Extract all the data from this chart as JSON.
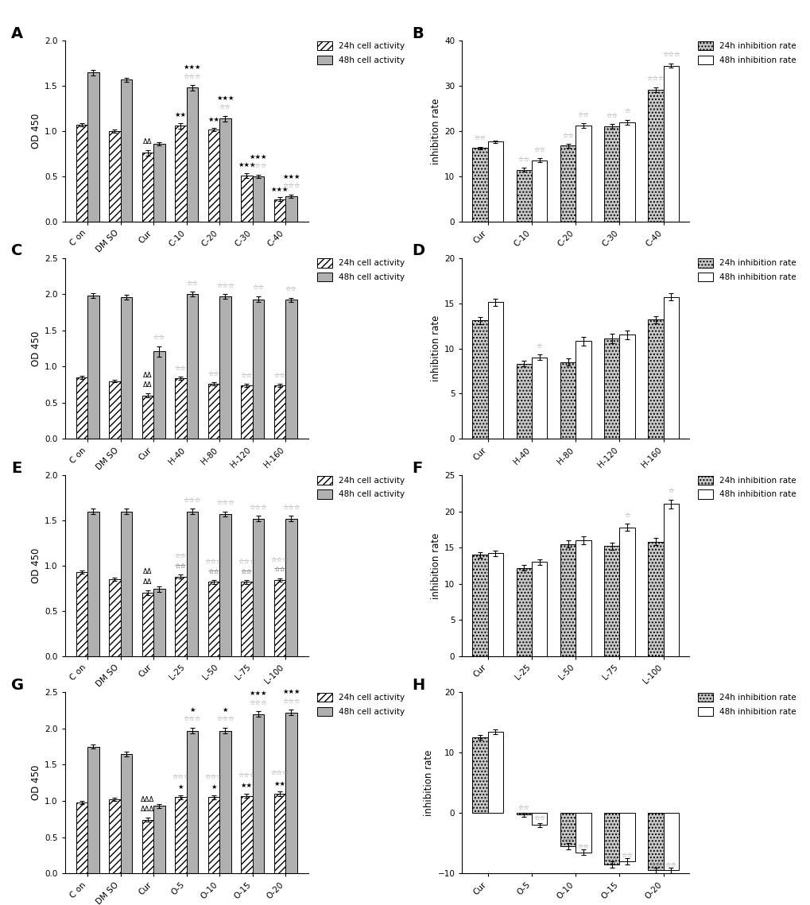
{
  "A": {
    "categories": [
      "C on",
      "DM SO",
      "Cur",
      "C-10",
      "C-20",
      "C-30",
      "C-40"
    ],
    "bar24": [
      1.07,
      1.0,
      0.76,
      1.06,
      1.02,
      0.51,
      0.25
    ],
    "bar48": [
      1.65,
      1.57,
      0.86,
      1.48,
      1.14,
      0.5,
      0.28
    ],
    "err24": [
      0.02,
      0.02,
      0.03,
      0.03,
      0.02,
      0.03,
      0.02
    ],
    "err48": [
      0.03,
      0.02,
      0.02,
      0.03,
      0.03,
      0.02,
      0.02
    ],
    "ylabel": "OD 450",
    "ylim": [
      0,
      2.0
    ],
    "yticks": [
      0.0,
      0.5,
      1.0,
      1.5,
      2.0
    ],
    "label": "A",
    "ann_above_24": [
      "",
      "",
      "ΔΔ",
      "",
      "",
      "",
      ""
    ],
    "ann_on_24": [
      "",
      "",
      "",
      "★★",
      "★★",
      "★★★",
      "★★★"
    ],
    "ann_above_48": [
      "",
      "",
      "",
      "☆☆☆",
      "☆☆",
      "☆☆☆",
      "☆☆☆"
    ],
    "ann_on_48": [
      "",
      "",
      "",
      "★★★",
      "★★★",
      "★★★",
      "★★★"
    ]
  },
  "B": {
    "categories": [
      "Cur",
      "C-10",
      "C-20",
      "C-30",
      "C-40"
    ],
    "bar24": [
      16.3,
      11.5,
      16.8,
      21.1,
      29.2
    ],
    "bar48": [
      17.7,
      13.6,
      21.2,
      22.0,
      34.5
    ],
    "err24": [
      0.3,
      0.4,
      0.4,
      0.5,
      0.5
    ],
    "err48": [
      0.3,
      0.4,
      0.5,
      0.5,
      0.5
    ],
    "ylabel": "inhibition rate",
    "ylim": [
      0,
      40
    ],
    "yticks": [
      0,
      10,
      20,
      30,
      40
    ],
    "label": "B",
    "ann_above_24": [
      "☆☆",
      "☆☆",
      "☆☆",
      "☆☆",
      "☆☆☆"
    ],
    "ann_on_24": [
      "",
      "",
      "",
      "",
      ""
    ],
    "ann_above_48": [
      "",
      "☆☆",
      "☆☆",
      "☆",
      "☆☆☆"
    ],
    "ann_on_48": [
      "",
      "",
      "",
      "",
      ""
    ]
  },
  "C": {
    "categories": [
      "C on",
      "DM SO",
      "Cur",
      "H-40",
      "H-80",
      "H-120",
      "H-160"
    ],
    "bar24": [
      0.85,
      0.8,
      0.6,
      0.84,
      0.76,
      0.74,
      0.74
    ],
    "bar48": [
      1.98,
      1.96,
      1.21,
      2.0,
      1.97,
      1.93,
      1.92
    ],
    "err24": [
      0.02,
      0.02,
      0.03,
      0.02,
      0.02,
      0.02,
      0.02
    ],
    "err48": [
      0.03,
      0.03,
      0.07,
      0.03,
      0.03,
      0.04,
      0.03
    ],
    "ylabel": "OD 450",
    "ylim": [
      0,
      2.5
    ],
    "yticks": [
      0.0,
      0.5,
      1.0,
      1.5,
      2.0,
      2.5
    ],
    "label": "C",
    "ann_above_24": [
      "",
      "",
      "ΔΔ",
      "☆☆",
      "☆☆",
      "☆☆",
      "☆☆"
    ],
    "ann_on_24": [
      "",
      "",
      "ΔΔ",
      "",
      "",
      "",
      ""
    ],
    "ann_above_48": [
      "",
      "",
      "☆☆",
      "☆☆",
      "☆☆☆",
      "☆☆",
      "☆☆"
    ],
    "ann_on_48": [
      "",
      "",
      "",
      "",
      "",
      "",
      ""
    ]
  },
  "D": {
    "categories": [
      "Cur",
      "H-40",
      "H-80",
      "H-120",
      "H-160"
    ],
    "bar24": [
      13.1,
      8.3,
      8.5,
      11.1,
      13.2
    ],
    "bar48": [
      15.1,
      9.0,
      10.8,
      11.5,
      15.7
    ],
    "err24": [
      0.4,
      0.3,
      0.4,
      0.5,
      0.4
    ],
    "err48": [
      0.4,
      0.3,
      0.5,
      0.5,
      0.4
    ],
    "ylabel": "inhibition rate",
    "ylim": [
      0,
      20
    ],
    "yticks": [
      0,
      5,
      10,
      15,
      20
    ],
    "label": "D",
    "ann_above_24": [
      "",
      "",
      "",
      "",
      ""
    ],
    "ann_on_24": [
      "",
      "",
      "",
      "",
      ""
    ],
    "ann_above_48": [
      "",
      "☆",
      "",
      "",
      ""
    ],
    "ann_on_48": [
      "",
      "",
      "",
      "",
      ""
    ]
  },
  "E": {
    "categories": [
      "C on",
      "DM SO",
      "Cur",
      "L-25",
      "L-50",
      "L-75",
      "L-100"
    ],
    "bar24": [
      0.93,
      0.85,
      0.7,
      0.88,
      0.82,
      0.82,
      0.84
    ],
    "bar48": [
      1.6,
      1.6,
      0.74,
      1.6,
      1.57,
      1.52,
      1.52
    ],
    "err24": [
      0.02,
      0.02,
      0.03,
      0.02,
      0.02,
      0.02,
      0.02
    ],
    "err48": [
      0.03,
      0.03,
      0.03,
      0.03,
      0.03,
      0.03,
      0.03
    ],
    "ylabel": "OD 450",
    "ylim": [
      0,
      2.0
    ],
    "yticks": [
      0.0,
      0.5,
      1.0,
      1.5,
      2.0
    ],
    "label": "E",
    "ann_above_24": [
      "",
      "",
      "ΔΔ",
      "☆☆",
      "☆☆☆",
      "☆☆☆",
      "☆☆☆"
    ],
    "ann_on_24": [
      "",
      "",
      "ΔΔ",
      "☆☆",
      "☆☆",
      "☆☆",
      "☆☆"
    ],
    "ann_above_48": [
      "",
      "",
      "",
      "☆☆☆",
      "☆☆☆",
      "☆☆☆",
      "☆☆☆"
    ],
    "ann_on_48": [
      "",
      "",
      "",
      "",
      "",
      "",
      ""
    ]
  },
  "F": {
    "categories": [
      "Cur",
      "L-25",
      "L-50",
      "L-75",
      "L-100"
    ],
    "bar24": [
      14.0,
      12.2,
      15.5,
      15.2,
      15.8
    ],
    "bar48": [
      14.2,
      13.0,
      16.0,
      17.8,
      21.0
    ],
    "err24": [
      0.4,
      0.4,
      0.5,
      0.5,
      0.5
    ],
    "err48": [
      0.4,
      0.4,
      0.5,
      0.5,
      0.6
    ],
    "ylabel": "inhibition rate",
    "ylim": [
      0,
      25
    ],
    "yticks": [
      0,
      5,
      10,
      15,
      20,
      25
    ],
    "label": "F",
    "ann_above_24": [
      "",
      "",
      "",
      "",
      ""
    ],
    "ann_on_24": [
      "",
      "",
      "",
      "",
      ""
    ],
    "ann_above_48": [
      "",
      "",
      "",
      "☆",
      "☆"
    ],
    "ann_on_48": [
      "",
      "",
      "",
      "",
      ""
    ]
  },
  "G": {
    "categories": [
      "C on",
      "DM SO",
      "Cur",
      "O-5",
      "O-10",
      "O-15",
      "O-20"
    ],
    "bar24": [
      0.98,
      1.02,
      0.74,
      1.05,
      1.05,
      1.07,
      1.1
    ],
    "bar48": [
      1.75,
      1.65,
      0.93,
      1.97,
      1.97,
      2.2,
      2.22
    ],
    "err24": [
      0.02,
      0.02,
      0.03,
      0.03,
      0.03,
      0.03,
      0.03
    ],
    "err48": [
      0.03,
      0.03,
      0.03,
      0.04,
      0.04,
      0.04,
      0.04
    ],
    "ylabel": "OD 450",
    "ylim": [
      0,
      2.5
    ],
    "yticks": [
      0.0,
      0.5,
      1.0,
      1.5,
      2.0,
      2.5
    ],
    "label": "G",
    "ann_above_24": [
      "",
      "",
      "ΔΔΔ",
      "☆☆☆",
      "☆☆☆",
      "☆☆☆",
      "☆☆☆"
    ],
    "ann_on_24": [
      "",
      "",
      "ΔΔΔ",
      "★",
      "★",
      "★★",
      "★★"
    ],
    "ann_above_48": [
      "",
      "",
      "",
      "☆☆☆",
      "☆☆☆",
      "☆☆☆",
      "☆☆☆"
    ],
    "ann_on_48": [
      "",
      "",
      "",
      "★",
      "★",
      "★★★",
      "★★★"
    ]
  },
  "H": {
    "categories": [
      "Cur",
      "O-5",
      "O-10",
      "O-15",
      "O-20"
    ],
    "bar24": [
      12.5,
      -0.3,
      -5.5,
      -8.5,
      -9.5
    ],
    "bar48": [
      13.5,
      -2.0,
      -6.5,
      -8.0,
      -9.5
    ],
    "err24": [
      0.4,
      0.3,
      0.5,
      0.5,
      0.5
    ],
    "err48": [
      0.4,
      0.3,
      0.5,
      0.5,
      0.5
    ],
    "ylabel": "inhibition rate",
    "ylim": [
      -10,
      20
    ],
    "yticks": [
      -10,
      0,
      10,
      20
    ],
    "label": "H",
    "ann_above_24": [
      "",
      "☆☆",
      "☆☆",
      "☆☆",
      "☆☆"
    ],
    "ann_on_24": [
      "",
      "",
      "",
      "",
      ""
    ],
    "ann_above_48": [
      "",
      "☆☆",
      "☆☆",
      "☆☆",
      "☆☆"
    ],
    "ann_on_48": [
      "",
      "",
      "",
      "",
      ""
    ]
  }
}
